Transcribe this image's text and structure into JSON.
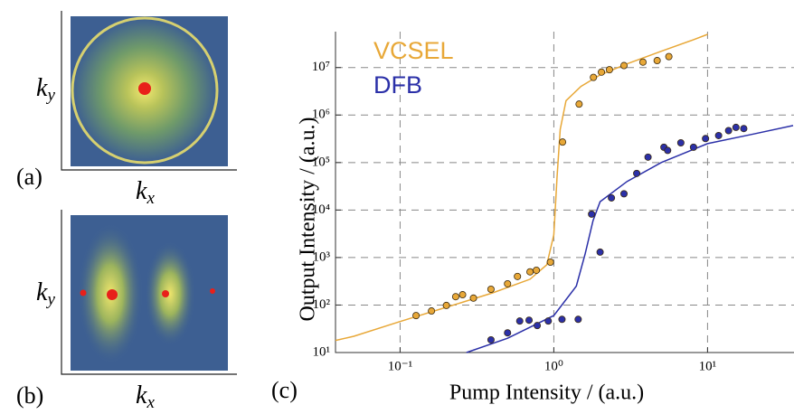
{
  "panels": [
    {
      "label": "(a)",
      "x_label": {
        "base": "k",
        "sub": "x"
      },
      "y_label": {
        "base": "k",
        "sub": "y"
      }
    },
    {
      "label": "(b)",
      "x_label": {
        "base": "k",
        "sub": "x"
      },
      "y_label": {
        "base": "k",
        "sub": "y"
      }
    }
  ],
  "chart_data": {
    "type": "scatter",
    "panel_label": "(c)",
    "x_label": "Pump Intensity / (a.u.)",
    "y_label": "Output Intensity / (a.u.)",
    "xlog": true,
    "ylog": true,
    "grid": true,
    "legend": "upper left",
    "xlim": [
      0.038,
      36.5
    ],
    "ylim": [
      10,
      57000000
    ],
    "xticks": [
      {
        "value": 0.1,
        "label": "10⁻¹"
      },
      {
        "value": 1,
        "label": "10⁰"
      },
      {
        "value": 10,
        "label": "10¹"
      }
    ],
    "yticks": [
      {
        "value": 10,
        "label": "10¹"
      },
      {
        "value": 100,
        "label": "10²"
      },
      {
        "value": 1000,
        "label": "10³"
      },
      {
        "value": 10000,
        "label": "10⁴"
      },
      {
        "value": 100000,
        "label": "10⁵"
      },
      {
        "value": 1000000,
        "label": "10⁶"
      },
      {
        "value": 10000000,
        "label": "10⁷"
      }
    ],
    "series": [
      {
        "name": "VCSEL",
        "color": "#e8a838",
        "x": [
          0.127,
          0.16,
          0.2,
          0.23,
          0.255,
          0.3,
          0.39,
          0.5,
          0.58,
          0.7,
          0.77,
          0.95,
          1.14,
          1.46,
          1.81,
          2.04,
          2.3,
          2.86,
          3.8,
          4.7,
          5.6
        ],
        "values": [
          60,
          75,
          98,
          150,
          165,
          140,
          215,
          280,
          400,
          500,
          540,
          800,
          270000,
          1700000,
          6200000,
          8000000,
          9000000,
          11000000,
          13000000,
          14000000,
          17000000
        ],
        "fit": {
          "x": [
            0.038,
            0.05,
            0.1,
            0.2,
            0.4,
            0.7,
            0.9,
            1.0,
            1.05,
            1.1,
            1.2,
            1.5,
            2,
            3,
            5,
            8,
            10
          ],
          "values": [
            18,
            22,
            45,
            90,
            180,
            350,
            700,
            3000,
            50000,
            500000,
            2000000,
            4000000,
            7000000,
            12000000,
            22000000,
            38000000,
            50000000
          ]
        }
      },
      {
        "name": "DFB",
        "color": "#2b30a8",
        "x": [
          0.39,
          0.5,
          0.6,
          0.69,
          0.78,
          0.92,
          1.13,
          1.44,
          1.76,
          2.0,
          2.37,
          2.86,
          3.46,
          4.1,
          5.2,
          5.5,
          6.7,
          8.1,
          9.7,
          11.8,
          13.7,
          15.3,
          17.2
        ],
        "values": [
          18.5,
          26,
          46,
          48,
          37,
          46,
          50,
          50,
          8200,
          1300,
          18000,
          22000,
          59000,
          130000,
          210000,
          180000,
          260000,
          210000,
          320000,
          370000,
          470000,
          550000,
          520000
        ],
        "fit": {
          "x": [
            0.27,
            0.5,
            1.0,
            1.4,
            1.6,
            1.8,
            2.0,
            3,
            5,
            10,
            20,
            36
          ],
          "values": [
            10,
            20,
            60,
            250,
            1200,
            6000,
            15000,
            40000,
            100000,
            250000,
            400000,
            600000
          ]
        }
      }
    ]
  }
}
